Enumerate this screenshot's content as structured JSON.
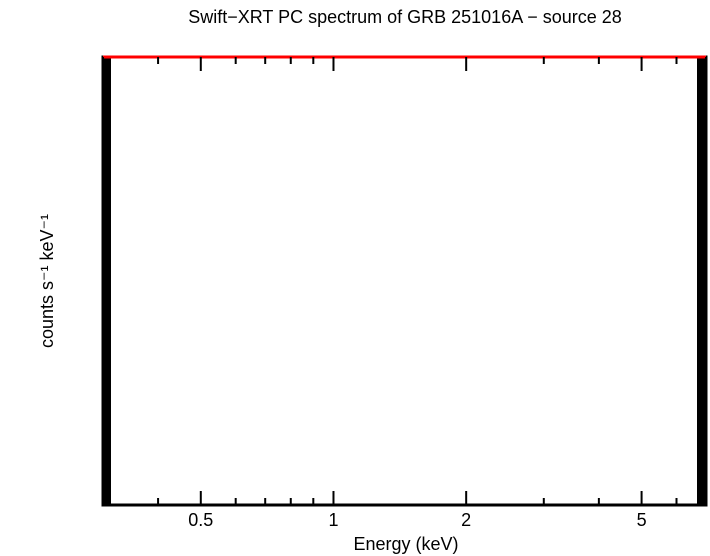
{
  "chart_data": {
    "type": "line",
    "title": "Swift−XRT PC spectrum of GRB 251016A − source 28",
    "xlabel": "Energy (keV)",
    "ylabel": "counts s⁻¹ keV⁻¹",
    "xscale": "log",
    "xlim": [
      0.3,
      7
    ],
    "xticks": [
      0.5,
      1,
      2,
      5
    ],
    "xminorticks": [
      0.3,
      0.4,
      0.6,
      0.7,
      0.8,
      0.9,
      3,
      4,
      6,
      7
    ]
  }
}
